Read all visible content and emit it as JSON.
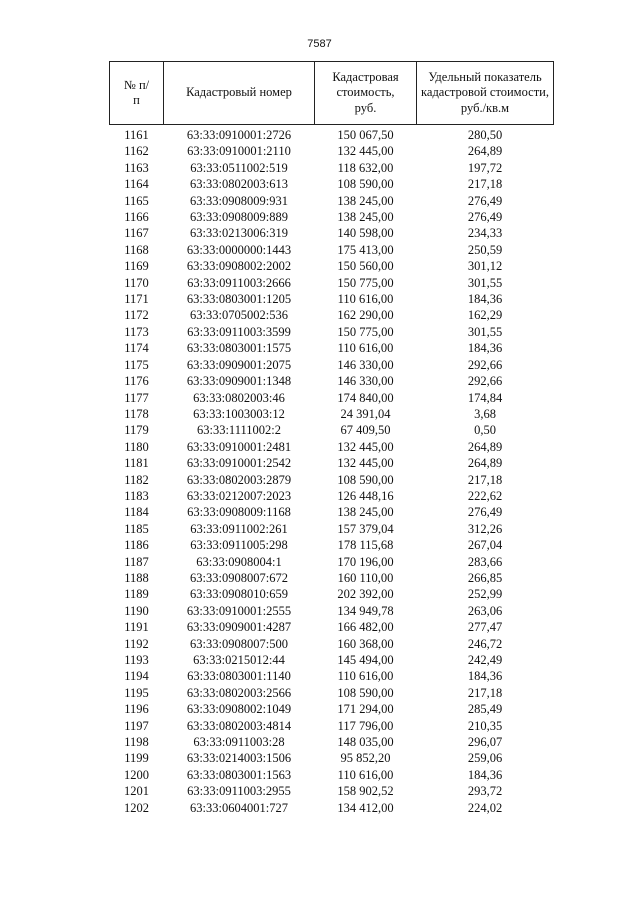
{
  "page_number": "7587",
  "table": {
    "headers": [
      "№ п/п",
      "Кадастровый номер",
      "Кадастровая стоимость, руб.",
      "Удельный показатель кадастровой стоимости, руб./кв.м"
    ],
    "rows": [
      [
        "1161",
        "63:33:0910001:2726",
        "150 067,50",
        "280,50"
      ],
      [
        "1162",
        "63:33:0910001:2110",
        "132 445,00",
        "264,89"
      ],
      [
        "1163",
        "63:33:0511002:519",
        "118 632,00",
        "197,72"
      ],
      [
        "1164",
        "63:33:0802003:613",
        "108 590,00",
        "217,18"
      ],
      [
        "1165",
        "63:33:0908009:931",
        "138 245,00",
        "276,49"
      ],
      [
        "1166",
        "63:33:0908009:889",
        "138 245,00",
        "276,49"
      ],
      [
        "1167",
        "63:33:0213006:319",
        "140 598,00",
        "234,33"
      ],
      [
        "1168",
        "63:33:0000000:1443",
        "175 413,00",
        "250,59"
      ],
      [
        "1169",
        "63:33:0908002:2002",
        "150 560,00",
        "301,12"
      ],
      [
        "1170",
        "63:33:0911003:2666",
        "150 775,00",
        "301,55"
      ],
      [
        "1171",
        "63:33:0803001:1205",
        "110 616,00",
        "184,36"
      ],
      [
        "1172",
        "63:33:0705002:536",
        "162 290,00",
        "162,29"
      ],
      [
        "1173",
        "63:33:0911003:3599",
        "150 775,00",
        "301,55"
      ],
      [
        "1174",
        "63:33:0803001:1575",
        "110 616,00",
        "184,36"
      ],
      [
        "1175",
        "63:33:0909001:2075",
        "146 330,00",
        "292,66"
      ],
      [
        "1176",
        "63:33:0909001:1348",
        "146 330,00",
        "292,66"
      ],
      [
        "1177",
        "63:33:0802003:46",
        "174 840,00",
        "174,84"
      ],
      [
        "1178",
        "63:33:1003003:12",
        "24 391,04",
        "3,68"
      ],
      [
        "1179",
        "63:33:1111002:2",
        "67 409,50",
        "0,50"
      ],
      [
        "1180",
        "63:33:0910001:2481",
        "132 445,00",
        "264,89"
      ],
      [
        "1181",
        "63:33:0910001:2542",
        "132 445,00",
        "264,89"
      ],
      [
        "1182",
        "63:33:0802003:2879",
        "108 590,00",
        "217,18"
      ],
      [
        "1183",
        "63:33:0212007:2023",
        "126 448,16",
        "222,62"
      ],
      [
        "1184",
        "63:33:0908009:1168",
        "138 245,00",
        "276,49"
      ],
      [
        "1185",
        "63:33:0911002:261",
        "157 379,04",
        "312,26"
      ],
      [
        "1186",
        "63:33:0911005:298",
        "178 115,68",
        "267,04"
      ],
      [
        "1187",
        "63:33:0908004:1",
        "170 196,00",
        "283,66"
      ],
      [
        "1188",
        "63:33:0908007:672",
        "160 110,00",
        "266,85"
      ],
      [
        "1189",
        "63:33:0908010:659",
        "202 392,00",
        "252,99"
      ],
      [
        "1190",
        "63:33:0910001:2555",
        "134 949,78",
        "263,06"
      ],
      [
        "1191",
        "63:33:0909001:4287",
        "166 482,00",
        "277,47"
      ],
      [
        "1192",
        "63:33:0908007:500",
        "160 368,00",
        "246,72"
      ],
      [
        "1193",
        "63:33:0215012:44",
        "145 494,00",
        "242,49"
      ],
      [
        "1194",
        "63:33:0803001:1140",
        "110 616,00",
        "184,36"
      ],
      [
        "1195",
        "63:33:0802003:2566",
        "108 590,00",
        "217,18"
      ],
      [
        "1196",
        "63:33:0908002:1049",
        "171 294,00",
        "285,49"
      ],
      [
        "1197",
        "63:33:0802003:4814",
        "117 796,00",
        "210,35"
      ],
      [
        "1198",
        "63:33:0911003:28",
        "148 035,00",
        "296,07"
      ],
      [
        "1199",
        "63:33:0214003:1506",
        "95 852,20",
        "259,06"
      ],
      [
        "1200",
        "63:33:0803001:1563",
        "110 616,00",
        "184,36"
      ],
      [
        "1201",
        "63:33:0911003:2955",
        "158 902,52",
        "293,72"
      ],
      [
        "1202",
        "63:33:0604001:727",
        "134 412,00",
        "224,02"
      ]
    ]
  }
}
